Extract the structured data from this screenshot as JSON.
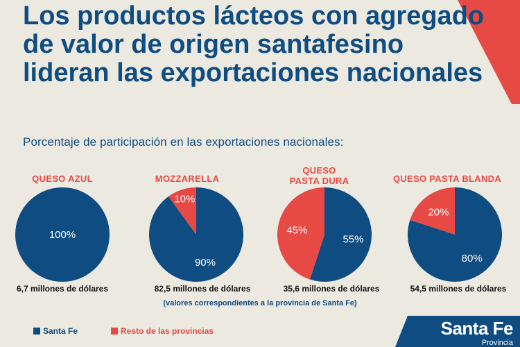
{
  "title": "Los productos lácteos con agregado de valor de origen santafesino lideran las exportaciones nacionales",
  "subtitle": "Porcentaje de participación en las exportaciones nacionales:",
  "note": "(valores correspondientes a la provincia de Santa Fe)",
  "colors": {
    "santa_fe": "#0f4c81",
    "resto": "#e74a44",
    "background": "#ece9e1"
  },
  "legend": [
    {
      "label": "Santa Fe",
      "color": "#0f4c81"
    },
    {
      "label": "Resto de las provincias",
      "color": "#e74a44"
    }
  ],
  "logo": {
    "name": "Santa Fe",
    "sub": "Provincia"
  },
  "chart_data": {
    "type": "pie",
    "series_names": [
      "Santa Fe",
      "Resto de las provincias"
    ],
    "pies": [
      {
        "label": "QUESO AZUL",
        "santa_fe": 100,
        "resto": 0,
        "santa_fe_label": "100%",
        "resto_label": "",
        "amount": "6,7 millones de dólares"
      },
      {
        "label": "MOZZARELLA",
        "santa_fe": 90,
        "resto": 10,
        "santa_fe_label": "90%",
        "resto_label": "10%",
        "amount": "82,5 millones de dólares"
      },
      {
        "label": "QUESO PASTA DURA",
        "santa_fe": 55,
        "resto": 45,
        "santa_fe_label": "55%",
        "resto_label": "45%",
        "amount": "35,6 millones de dólares"
      },
      {
        "label": "QUESO PASTA BLANDA",
        "santa_fe": 80,
        "resto": 20,
        "santa_fe_label": "80%",
        "resto_label": "20%",
        "amount": "54,5 millones de dólares"
      }
    ]
  }
}
